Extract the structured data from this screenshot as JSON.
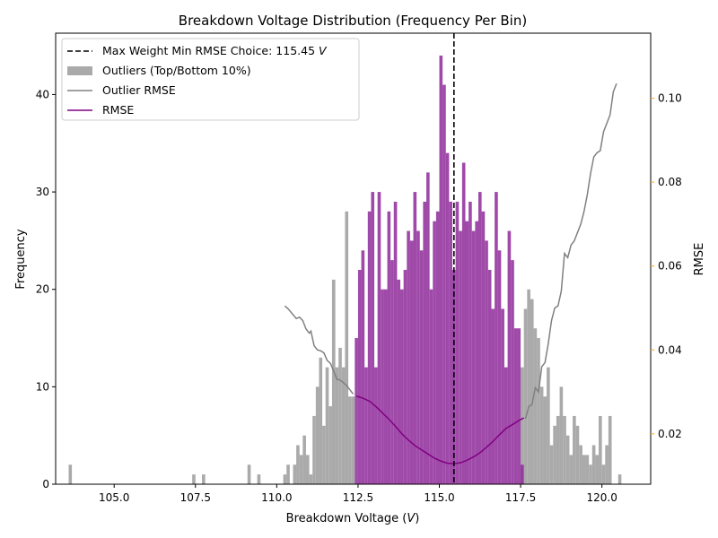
{
  "chart_data": {
    "type": "bar",
    "title": "Breakdown Voltage Distribution (Frequency Per Bin)",
    "xlabel_main": "Breakdown Voltage (",
    "xlabel_var": "V",
    "xlabel_close": ")",
    "ylabel": "Frequency",
    "y2label": "RMSE",
    "xlim": [
      103.2,
      121.5
    ],
    "ylim": [
      0,
      46.3
    ],
    "y2lim": [
      0.008,
      0.1155
    ],
    "xticks": [
      105.0,
      107.5,
      110.0,
      112.5,
      115.0,
      117.5,
      120.0
    ],
    "xtick_labels": [
      "105.0",
      "107.5",
      "110.0",
      "112.5",
      "115.0",
      "117.5",
      "120.0"
    ],
    "yticks": [
      0,
      10,
      20,
      30,
      40
    ],
    "ytick_labels": [
      "0",
      "10",
      "20",
      "30",
      "40"
    ],
    "y2ticks": [
      0.02,
      0.04,
      0.06,
      0.08,
      0.1
    ],
    "y2tick_labels": [
      "0.02",
      "0.04",
      "0.06",
      "0.08",
      "0.10"
    ],
    "bin_width": 0.1,
    "choice_line": {
      "x": 115.45,
      "label_main": "Max Weight Min RMSE Choice: 115.45",
      "label_var": "V"
    },
    "colors": {
      "inlier": "#8e2a9a",
      "outlier": "#aaaaaa",
      "rmse": "#800080",
      "outlier_rmse": "#808080",
      "right_axis": "#ffa500",
      "choice": "#000000"
    },
    "legend": {
      "placement": "top-left",
      "items": [
        {
          "key": "choice",
          "text": "Max Weight Min RMSE Choice: 115.45",
          "var": "V"
        },
        {
          "key": "outlier",
          "text": "Outliers (Top/Bottom 10%)"
        },
        {
          "key": "outlier_rmse",
          "text": "Outlier RMSE"
        },
        {
          "key": "rmse",
          "text": "RMSE"
        }
      ]
    },
    "series": [
      {
        "name": "Outliers (Top/Bottom 10%)",
        "bins": [
          [
            103.65,
            2
          ],
          [
            107.45,
            1
          ],
          [
            107.75,
            1
          ],
          [
            109.15,
            2
          ],
          [
            109.45,
            1
          ],
          [
            110.25,
            1
          ],
          [
            110.35,
            2
          ],
          [
            110.55,
            2
          ],
          [
            110.65,
            4
          ],
          [
            110.75,
            3
          ],
          [
            110.85,
            5
          ],
          [
            110.95,
            3
          ],
          [
            111.05,
            1
          ],
          [
            111.15,
            7
          ],
          [
            111.25,
            10
          ],
          [
            111.35,
            13
          ],
          [
            111.45,
            6
          ],
          [
            111.55,
            12
          ],
          [
            111.65,
            8
          ],
          [
            111.75,
            21
          ],
          [
            111.85,
            12
          ],
          [
            111.95,
            14
          ],
          [
            112.05,
            12
          ],
          [
            112.15,
            28
          ],
          [
            112.25,
            9
          ],
          [
            112.35,
            9
          ],
          [
            117.55,
            12
          ],
          [
            117.65,
            18
          ],
          [
            117.75,
            20
          ],
          [
            117.85,
            19
          ],
          [
            117.95,
            16
          ],
          [
            118.05,
            15
          ],
          [
            118.15,
            10
          ],
          [
            118.25,
            9
          ],
          [
            118.35,
            12
          ],
          [
            118.45,
            4
          ],
          [
            118.55,
            6
          ],
          [
            118.65,
            7
          ],
          [
            118.75,
            10
          ],
          [
            118.85,
            7
          ],
          [
            118.95,
            5
          ],
          [
            119.05,
            3
          ],
          [
            119.15,
            7
          ],
          [
            119.25,
            6
          ],
          [
            119.35,
            4
          ],
          [
            119.45,
            3
          ],
          [
            119.55,
            3
          ],
          [
            119.65,
            2
          ],
          [
            119.75,
            4
          ],
          [
            119.85,
            3
          ],
          [
            119.95,
            7
          ],
          [
            120.05,
            2
          ],
          [
            120.15,
            4
          ],
          [
            120.25,
            7
          ],
          [
            120.55,
            1
          ]
        ]
      },
      {
        "name": "Inliers",
        "bins": [
          [
            112.45,
            15
          ],
          [
            112.55,
            22
          ],
          [
            112.65,
            24
          ],
          [
            112.75,
            12
          ],
          [
            112.85,
            28
          ],
          [
            112.95,
            30
          ],
          [
            113.05,
            12
          ],
          [
            113.15,
            30
          ],
          [
            113.25,
            20
          ],
          [
            113.35,
            20
          ],
          [
            113.45,
            28
          ],
          [
            113.55,
            23
          ],
          [
            113.65,
            29
          ],
          [
            113.75,
            21
          ],
          [
            113.85,
            20
          ],
          [
            113.95,
            22
          ],
          [
            114.05,
            26
          ],
          [
            114.15,
            25
          ],
          [
            114.25,
            30
          ],
          [
            114.35,
            26
          ],
          [
            114.45,
            24
          ],
          [
            114.55,
            29
          ],
          [
            114.65,
            32
          ],
          [
            114.75,
            20
          ],
          [
            114.85,
            27
          ],
          [
            114.95,
            28
          ],
          [
            115.05,
            44
          ],
          [
            115.15,
            41
          ],
          [
            115.25,
            34
          ],
          [
            115.35,
            29
          ],
          [
            115.45,
            22
          ],
          [
            115.55,
            29
          ],
          [
            115.65,
            26
          ],
          [
            115.75,
            33
          ],
          [
            115.85,
            27
          ],
          [
            115.95,
            29
          ],
          [
            116.05,
            26
          ],
          [
            116.15,
            27
          ],
          [
            116.25,
            30
          ],
          [
            116.35,
            28
          ],
          [
            116.45,
            25
          ],
          [
            116.55,
            22
          ],
          [
            116.65,
            18
          ],
          [
            116.75,
            30
          ],
          [
            116.85,
            24
          ],
          [
            116.95,
            18
          ],
          [
            117.05,
            12
          ],
          [
            117.15,
            26
          ],
          [
            117.25,
            23
          ],
          [
            117.35,
            16
          ],
          [
            117.45,
            16
          ],
          [
            117.55,
            2
          ]
        ]
      }
    ],
    "lines": [
      {
        "name": "Outlier RMSE",
        "points": [
          [
            110.25,
            0.0505
          ],
          [
            110.35,
            0.0498
          ],
          [
            110.6,
            0.0475
          ],
          [
            110.7,
            0.0478
          ],
          [
            110.8,
            0.047
          ],
          [
            110.9,
            0.045
          ],
          [
            111.0,
            0.044
          ],
          [
            111.05,
            0.0445
          ],
          [
            111.15,
            0.041
          ],
          [
            111.25,
            0.04
          ],
          [
            111.35,
            0.0398
          ],
          [
            111.45,
            0.0393
          ],
          [
            111.55,
            0.0375
          ],
          [
            111.65,
            0.0368
          ],
          [
            111.75,
            0.035
          ],
          [
            111.85,
            0.033
          ],
          [
            111.95,
            0.0328
          ],
          [
            112.05,
            0.0322
          ],
          [
            112.15,
            0.0315
          ],
          [
            112.25,
            0.0305
          ],
          [
            112.35,
            0.0295
          ],
          [
            117.65,
            0.0236
          ],
          [
            117.75,
            0.0265
          ],
          [
            117.85,
            0.027
          ],
          [
            117.95,
            0.031
          ],
          [
            118.05,
            0.03
          ],
          [
            118.15,
            0.036
          ],
          [
            118.25,
            0.037
          ],
          [
            118.35,
            0.0415
          ],
          [
            118.45,
            0.047
          ],
          [
            118.55,
            0.05
          ],
          [
            118.65,
            0.0505
          ],
          [
            118.75,
            0.054
          ],
          [
            118.85,
            0.063
          ],
          [
            118.95,
            0.062
          ],
          [
            119.05,
            0.065
          ],
          [
            119.15,
            0.066
          ],
          [
            119.25,
            0.068
          ],
          [
            119.35,
            0.07
          ],
          [
            119.45,
            0.073
          ],
          [
            119.55,
            0.077
          ],
          [
            119.65,
            0.082
          ],
          [
            119.75,
            0.086
          ],
          [
            119.85,
            0.087
          ],
          [
            119.95,
            0.0875
          ],
          [
            120.05,
            0.092
          ],
          [
            120.15,
            0.094
          ],
          [
            120.25,
            0.096
          ],
          [
            120.35,
            0.1015
          ],
          [
            120.45,
            0.1035
          ]
        ]
      },
      {
        "name": "RMSE",
        "points": [
          [
            112.45,
            0.029
          ],
          [
            112.65,
            0.0285
          ],
          [
            112.85,
            0.0278
          ],
          [
            113.05,
            0.0265
          ],
          [
            113.25,
            0.025
          ],
          [
            113.45,
            0.0235
          ],
          [
            113.65,
            0.0218
          ],
          [
            113.85,
            0.02
          ],
          [
            114.05,
            0.0185
          ],
          [
            114.25,
            0.0172
          ],
          [
            114.45,
            0.0162
          ],
          [
            114.65,
            0.0152
          ],
          [
            114.85,
            0.0142
          ],
          [
            115.05,
            0.0135
          ],
          [
            115.25,
            0.013
          ],
          [
            115.45,
            0.0129
          ],
          [
            115.65,
            0.0131
          ],
          [
            115.85,
            0.0137
          ],
          [
            116.05,
            0.0145
          ],
          [
            116.25,
            0.0155
          ],
          [
            116.45,
            0.0168
          ],
          [
            116.65,
            0.0182
          ],
          [
            116.85,
            0.0198
          ],
          [
            117.05,
            0.0213
          ],
          [
            117.25,
            0.0222
          ],
          [
            117.45,
            0.0232
          ],
          [
            117.6,
            0.0238
          ]
        ]
      }
    ]
  }
}
